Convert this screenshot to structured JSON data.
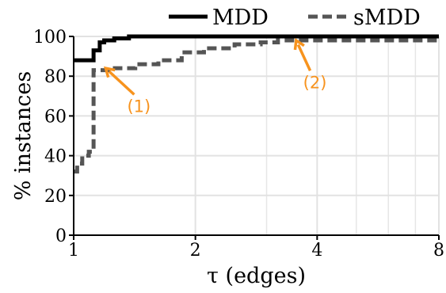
{
  "chart_data": {
    "type": "line",
    "xlabel": "τ (edges)",
    "ylabel": "% instances",
    "x_scale": "log2",
    "xlim": [
      1,
      8
    ],
    "ylim": [
      0,
      100
    ],
    "x_ticks": [
      {
        "value": 1,
        "label": "1"
      },
      {
        "value": 2,
        "label": "2"
      },
      {
        "value": 4,
        "label": "4"
      },
      {
        "value": 8,
        "label": "8"
      }
    ],
    "y_ticks": [
      {
        "value": 0,
        "label": "0"
      },
      {
        "value": 20,
        "label": "20"
      },
      {
        "value": 40,
        "label": "40"
      },
      {
        "value": 60,
        "label": "60"
      },
      {
        "value": 80,
        "label": "80"
      },
      {
        "value": 100,
        "label": "100"
      }
    ],
    "grid": true,
    "legend_position": "top",
    "series": [
      {
        "name": "MDD",
        "color": "#000000",
        "style": "solid",
        "step": true,
        "x": [
          1,
          1.12,
          1.12,
          1.16,
          1.16,
          1.19,
          1.19,
          1.26,
          1.26,
          1.37,
          1.37,
          8
        ],
        "y": [
          88,
          88,
          93,
          93,
          97,
          97,
          98,
          98,
          99,
          99,
          100,
          100
        ]
      },
      {
        "name": "sMDD",
        "color": "#555555",
        "style": "dashed",
        "step": true,
        "x": [
          1,
          1.02,
          1.02,
          1.05,
          1.05,
          1.09,
          1.09,
          1.12,
          1.12,
          1.22,
          1.22,
          1.42,
          1.42,
          1.62,
          1.62,
          1.85,
          1.85,
          2.1,
          2.1,
          2.5,
          2.5,
          2.9,
          2.9,
          3.2,
          3.2,
          8
        ],
        "y": [
          32,
          32,
          36,
          36,
          40,
          40,
          42,
          42,
          83,
          83,
          84,
          84,
          86,
          86,
          88,
          88,
          92,
          92,
          94,
          94,
          96,
          96,
          97,
          97,
          98,
          98
        ]
      }
    ],
    "annotations": [
      {
        "label": "(1)",
        "color": "#f7931e",
        "target": {
          "x": 1.2,
          "y": 84
        },
        "text_at": {
          "x": 1.45,
          "y": 62
        }
      },
      {
        "label": "(2)",
        "color": "#f7931e",
        "target": {
          "x": 3.55,
          "y": 98
        },
        "text_at": {
          "x": 3.95,
          "y": 74
        }
      }
    ]
  }
}
